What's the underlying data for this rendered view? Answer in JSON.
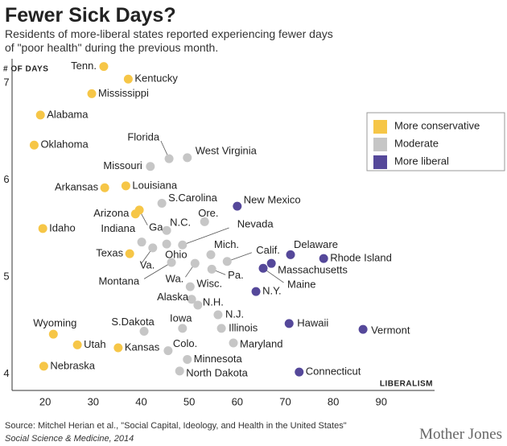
{
  "chart_data": {
    "type": "scatter",
    "title": "Fewer Sick Days?",
    "subtitle": [
      "Residents of more-liberal states reported experiencing fewer days",
      " of \"poor health\" during the previous month."
    ],
    "y_label": "# OF DAYS",
    "x_label": "LIBERALISM",
    "source": [
      "Source: Mitchel Herian et al., \"Social Capital, Ideology, and Health in the United States\"",
      "Social Science & Medicine, 2014"
    ],
    "brand": "Mother Jones",
    "xlim": [
      13.1,
      101.1
    ],
    "xticks": [
      20,
      30,
      40,
      50,
      60,
      70,
      80,
      90
    ],
    "ylim": [
      3.83,
      7.25
    ],
    "yticks": [
      4,
      5,
      6,
      7
    ],
    "series": [
      {
        "name": "More conservative",
        "color": "#f6c647",
        "labels": [
          "Tenn.",
          "Kentucky",
          "Mississippi",
          "Alabama",
          "Oklahoma",
          "Arkansas",
          "Louisiana",
          "Arizona",
          "Ga.",
          "Idaho",
          "Texas",
          "Wyoming",
          "Utah",
          "Kansas",
          "Nebraska"
        ],
        "x": [
          32.2,
          37.3,
          29.7,
          19.0,
          17.7,
          32.4,
          36.8,
          38.8,
          39.6,
          19.5,
          37.6,
          21.7,
          26.7,
          35.2,
          19.7
        ],
        "values": [
          7.17,
          7.04,
          6.89,
          6.67,
          6.36,
          5.92,
          5.94,
          5.65,
          5.69,
          5.5,
          5.24,
          4.41,
          4.3,
          4.27,
          4.08
        ]
      },
      {
        "name": "Moderate",
        "color": "#c6c6c6",
        "labels": [
          "Florida",
          "West Virginia",
          "Missouri",
          "S.Carolina",
          "Ore.",
          "N.C.",
          "Indiana",
          "Nevada",
          "Va.",
          "Ohio",
          "Mich.",
          "Calif.",
          "Montana",
          "Wa.",
          "Pa.",
          "Wisc.",
          "Alaska",
          "N.H.",
          "N.J.",
          "Illinois",
          "Iowa",
          "S.Dakota",
          "Maryland",
          "Colo.",
          "Minnesota",
          "North Dakota"
        ],
        "x": [
          45.8,
          49.6,
          41.9,
          44.3,
          53.2,
          45.3,
          40.1,
          48.6,
          42.4,
          45.3,
          54.5,
          57.9,
          46.3,
          51.2,
          54.7,
          50.2,
          50.5,
          51.8,
          56.0,
          56.7,
          48.6,
          40.6,
          59.2,
          45.6,
          49.6,
          48.0
        ],
        "values": [
          6.22,
          6.23,
          6.14,
          5.76,
          5.57,
          5.48,
          5.36,
          5.33,
          5.3,
          5.34,
          5.23,
          5.16,
          5.15,
          5.14,
          5.08,
          4.9,
          4.77,
          4.71,
          4.61,
          4.47,
          4.47,
          4.44,
          4.32,
          4.24,
          4.15,
          4.03
        ]
      },
      {
        "name": "More liberal",
        "color": "#55489a",
        "labels": [
          "New Mexico",
          "Delaware",
          "Rhode Island",
          "Massachusetts",
          "Maine",
          "N.Y.",
          "Hawaii",
          "Vermont",
          "Connecticut"
        ],
        "x": [
          60.0,
          71.1,
          78.0,
          67.1,
          65.4,
          63.9,
          70.8,
          86.2,
          72.9
        ],
        "values": [
          5.73,
          5.23,
          5.19,
          5.14,
          5.09,
          4.85,
          4.52,
          4.46,
          4.02
        ]
      }
    ]
  }
}
